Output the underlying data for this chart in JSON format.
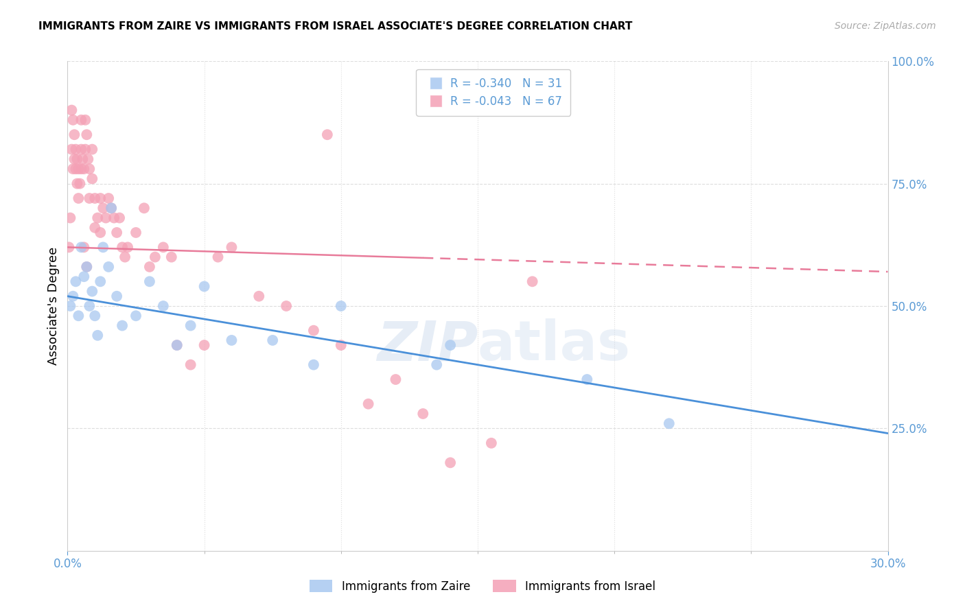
{
  "title": "IMMIGRANTS FROM ZAIRE VS IMMIGRANTS FROM ISRAEL ASSOCIATE'S DEGREE CORRELATION CHART",
  "source": "Source: ZipAtlas.com",
  "ylabel": "Associate's Degree",
  "xmin": 0.0,
  "xmax": 30.0,
  "ymin": 0.0,
  "ymax": 100.0,
  "zaire_R": -0.34,
  "zaire_N": 31,
  "israel_R": -0.043,
  "israel_N": 67,
  "zaire_color": "#A8C8F0",
  "israel_color": "#F4A0B5",
  "zaire_line_color": "#4A90D9",
  "israel_line_color": "#E87B9A",
  "legend_zaire_label": "Immigrants from Zaire",
  "legend_israel_label": "Immigrants from Israel",
  "zaire_line_y0": 52.0,
  "zaire_line_y1": 24.0,
  "israel_line_y0": 62.0,
  "israel_line_y1": 57.0,
  "zaire_x": [
    0.1,
    0.2,
    0.3,
    0.4,
    0.5,
    0.6,
    0.7,
    0.8,
    0.9,
    1.0,
    1.1,
    1.2,
    1.3,
    1.5,
    1.6,
    1.8,
    2.0,
    2.5,
    3.0,
    3.5,
    4.0,
    4.5,
    5.0,
    6.0,
    7.5,
    9.0,
    10.0,
    13.5,
    14.0,
    19.0,
    22.0
  ],
  "zaire_y": [
    50,
    52,
    55,
    48,
    62,
    56,
    58,
    50,
    53,
    48,
    44,
    55,
    62,
    58,
    70,
    52,
    46,
    48,
    55,
    50,
    42,
    46,
    54,
    43,
    43,
    38,
    50,
    38,
    42,
    35,
    26
  ],
  "israel_x": [
    0.05,
    0.1,
    0.15,
    0.15,
    0.2,
    0.2,
    0.25,
    0.25,
    0.3,
    0.3,
    0.35,
    0.35,
    0.4,
    0.4,
    0.45,
    0.5,
    0.5,
    0.5,
    0.55,
    0.6,
    0.65,
    0.65,
    0.7,
    0.75,
    0.8,
    0.8,
    0.9,
    0.9,
    1.0,
    1.0,
    1.1,
    1.2,
    1.3,
    1.4,
    1.5,
    1.6,
    1.7,
    1.8,
    1.9,
    2.0,
    2.1,
    2.2,
    2.5,
    2.8,
    3.0,
    3.2,
    3.5,
    3.8,
    4.0,
    4.5,
    5.0,
    5.5,
    6.0,
    7.0,
    8.0,
    9.0,
    10.0,
    11.0,
    12.0,
    13.0,
    14.0,
    15.5,
    17.0,
    9.5,
    0.6,
    0.7,
    1.2
  ],
  "israel_y": [
    62,
    68,
    82,
    90,
    88,
    78,
    85,
    80,
    82,
    78,
    80,
    75,
    78,
    72,
    75,
    88,
    82,
    78,
    80,
    78,
    88,
    82,
    85,
    80,
    78,
    72,
    82,
    76,
    72,
    66,
    68,
    72,
    70,
    68,
    72,
    70,
    68,
    65,
    68,
    62,
    60,
    62,
    65,
    70,
    58,
    60,
    62,
    60,
    42,
    38,
    42,
    60,
    62,
    52,
    50,
    45,
    42,
    30,
    35,
    28,
    18,
    22,
    55,
    85,
    62,
    58,
    65
  ]
}
